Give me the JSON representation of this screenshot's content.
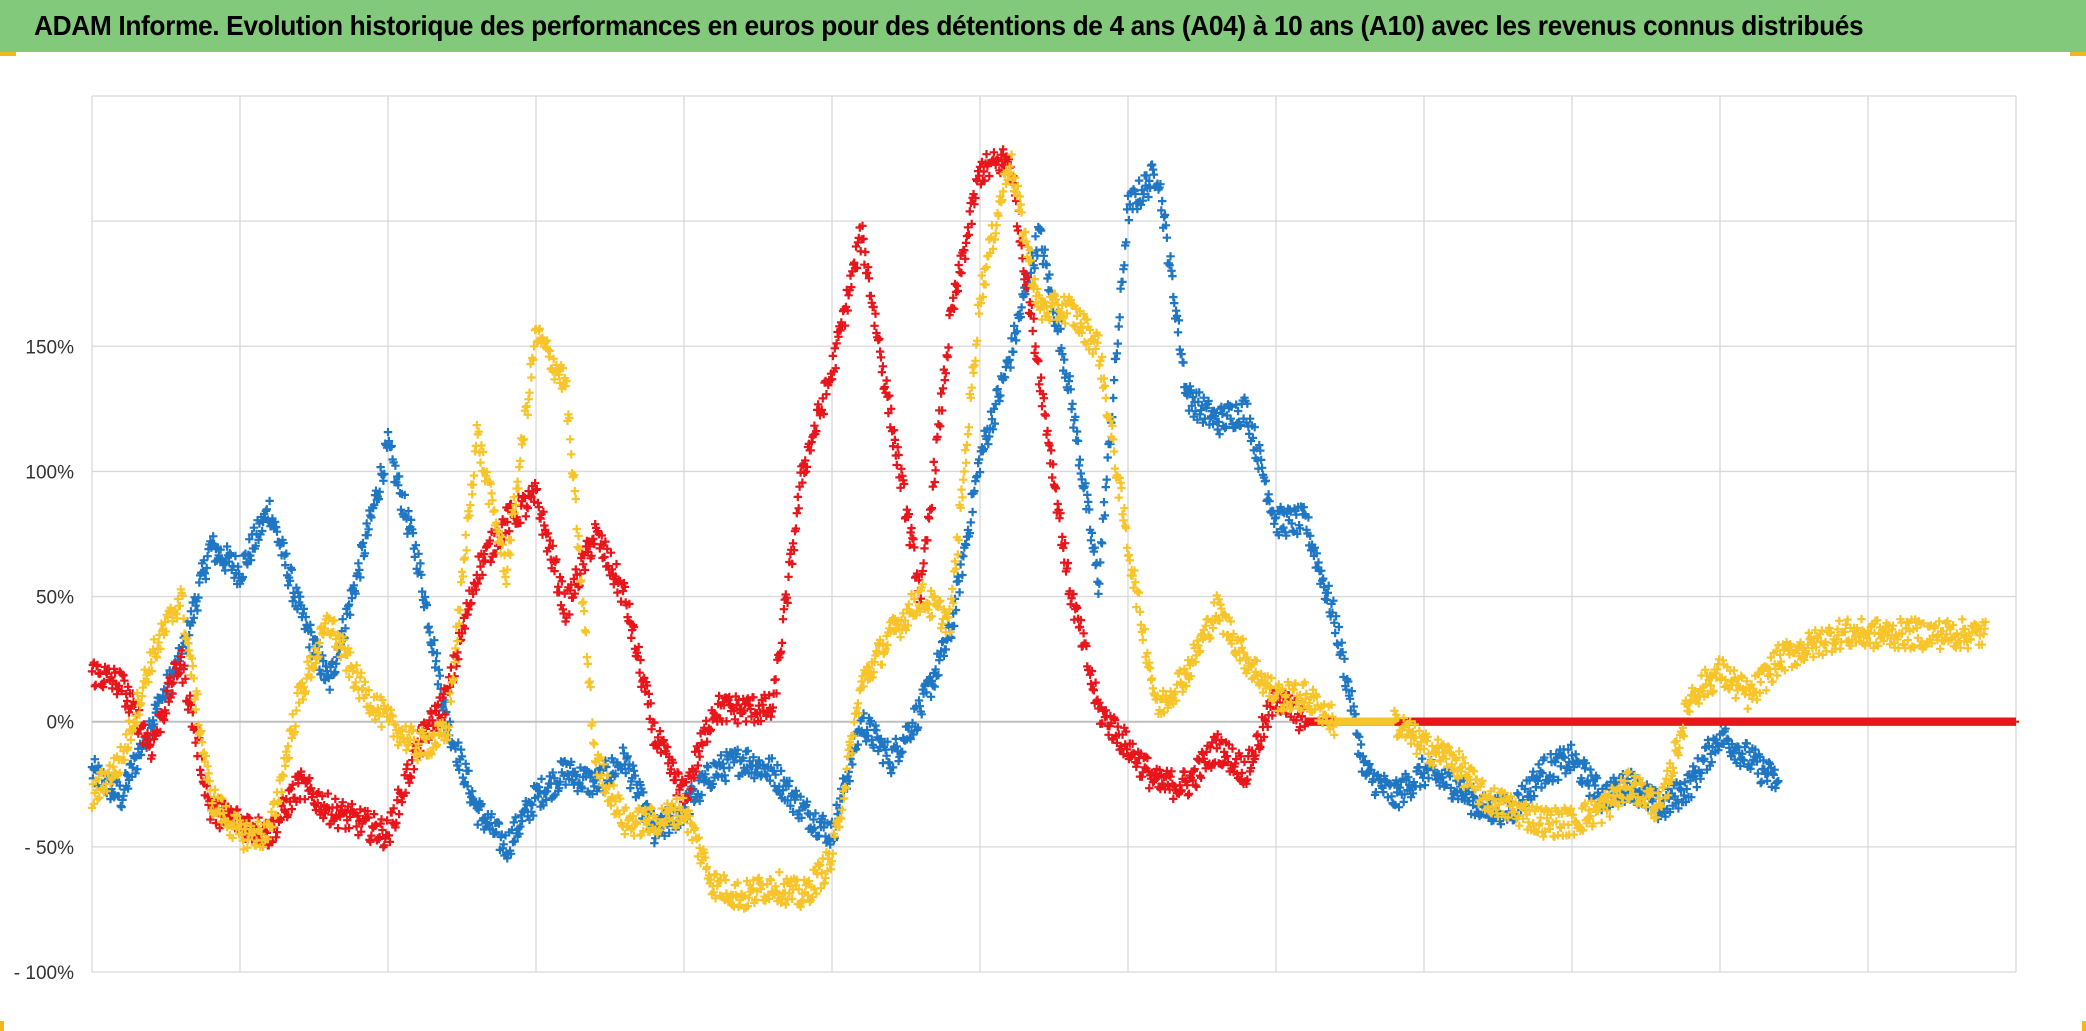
{
  "title": "ADAM Informe. Evolution historique des performances en euros pour des détentions de 4 ans (A04) à 10 ans (A10) avec les revenus connus distribués",
  "colors": {
    "title_bg": "#82c97b",
    "corner": "#f2b81b",
    "gridline": "#d9d9d9",
    "zero_line": "#bfbfbf",
    "series_blue": "#1f77c4",
    "series_red": "#e8151b",
    "series_yellow": "#f7c52a"
  },
  "chart_data": {
    "type": "scatter",
    "marker": "plus",
    "title": "ADAM Informe. Evolution historique des performances en euros pour des détentions de 4 ans (A04) à 10 ans (A10) avec les revenus connus distribués",
    "xlabel": "",
    "ylabel": "",
    "ylim": [
      -100,
      250
    ],
    "ytick_values": [
      -100,
      -50,
      0,
      50,
      100,
      150
    ],
    "ytick_labels": [
      "- 100%",
      "- 50%",
      "0%",
      "50%",
      "100%",
      "150%"
    ],
    "grid": true,
    "legend": "none",
    "x_units": "index",
    "xlim": [
      0,
      130
    ],
    "x_gridlines": 13,
    "series": [
      {
        "color": "#1f77c4",
        "x": [
          0,
          2,
          4,
          6,
          8,
          10,
          12,
          14,
          16,
          18,
          20,
          22,
          24,
          26,
          28,
          30,
          32,
          34,
          36,
          38,
          40,
          42,
          44,
          46,
          48,
          50,
          52,
          54,
          56,
          58,
          60,
          62,
          64,
          66,
          68,
          70,
          72,
          74,
          76,
          78,
          80,
          82,
          84,
          86,
          88,
          90,
          92,
          94,
          96,
          98,
          100,
          102,
          104,
          106,
          108,
          110,
          112,
          114
        ],
        "y": [
          -20,
          -30,
          0,
          25,
          70,
          60,
          85,
          45,
          15,
          60,
          110,
          65,
          0,
          -35,
          -50,
          -30,
          -20,
          -25,
          -15,
          -45,
          -35,
          -20,
          -15,
          -20,
          -35,
          -45,
          0,
          -15,
          5,
          35,
          105,
          145,
          195,
          135,
          55,
          205,
          220,
          130,
          120,
          125,
          80,
          80,
          40,
          -20,
          -30,
          -20,
          -25,
          -35,
          -35,
          -20,
          -15,
          -30,
          -25,
          -35,
          -25,
          -5,
          -15,
          -25
        ]
      },
      {
        "color": "#e8151b",
        "x": [
          0,
          2,
          4,
          6,
          8,
          10,
          12,
          14,
          16,
          18,
          20,
          22,
          24,
          26,
          28,
          30,
          32,
          34,
          36,
          38,
          40,
          42,
          44,
          46,
          48,
          50,
          52,
          54,
          56,
          58,
          60,
          62,
          64,
          66,
          68,
          70,
          72,
          74,
          76,
          78,
          80,
          82,
          84,
          86,
          88,
          90,
          92,
          94,
          96,
          98,
          100,
          102,
          104,
          106,
          108,
          110,
          112,
          114,
          116,
          118,
          120,
          122,
          124,
          126,
          128,
          130
        ],
        "y": [
          20,
          15,
          -10,
          25,
          -35,
          -40,
          -45,
          -25,
          -35,
          -40,
          -45,
          -10,
          10,
          60,
          80,
          90,
          45,
          75,
          50,
          -5,
          -30,
          5,
          5,
          5,
          100,
          140,
          195,
          120,
          50,
          160,
          220,
          225,
          140,
          55,
          5,
          -10,
          -25,
          -25,
          -10,
          -20,
          10,
          0,
          0,
          0,
          0,
          0,
          0,
          0,
          0,
          0,
          0,
          0,
          0,
          0,
          0,
          0,
          0,
          0,
          0,
          0,
          0,
          0,
          0,
          0,
          0,
          0
        ]
      },
      {
        "color": "#f7c52a",
        "x": [
          0,
          2,
          4,
          6,
          8,
          10,
          12,
          14,
          16,
          18,
          20,
          22,
          24,
          26,
          28,
          30,
          32,
          34,
          36,
          38,
          40,
          42,
          44,
          46,
          48,
          50,
          52,
          54,
          56,
          58,
          60,
          62,
          64,
          66,
          68,
          70,
          72,
          74,
          76,
          78,
          80,
          82,
          84,
          86,
          88,
          90,
          92,
          94,
          96,
          98,
          100,
          102,
          104,
          106,
          108,
          110,
          112,
          114,
          116,
          118,
          120,
          122,
          124,
          126,
          128
        ],
        "y": [
          -30,
          -15,
          25,
          50,
          -30,
          -45,
          -45,
          10,
          40,
          15,
          0,
          -10,
          -5,
          115,
          60,
          155,
          135,
          -15,
          -40,
          -40,
          -35,
          -65,
          -70,
          -65,
          -70,
          -55,
          15,
          35,
          50,
          40,
          170,
          225,
          165,
          165,
          150,
          70,
          5,
          20,
          45,
          25,
          10,
          10,
          0,
          0,
          0,
          -10,
          -15,
          -30,
          -35,
          -40,
          -40,
          -35,
          -25,
          -35,
          10,
          20,
          10,
          25,
          30,
          35,
          35,
          35,
          35,
          35,
          35
        ]
      }
    ]
  }
}
